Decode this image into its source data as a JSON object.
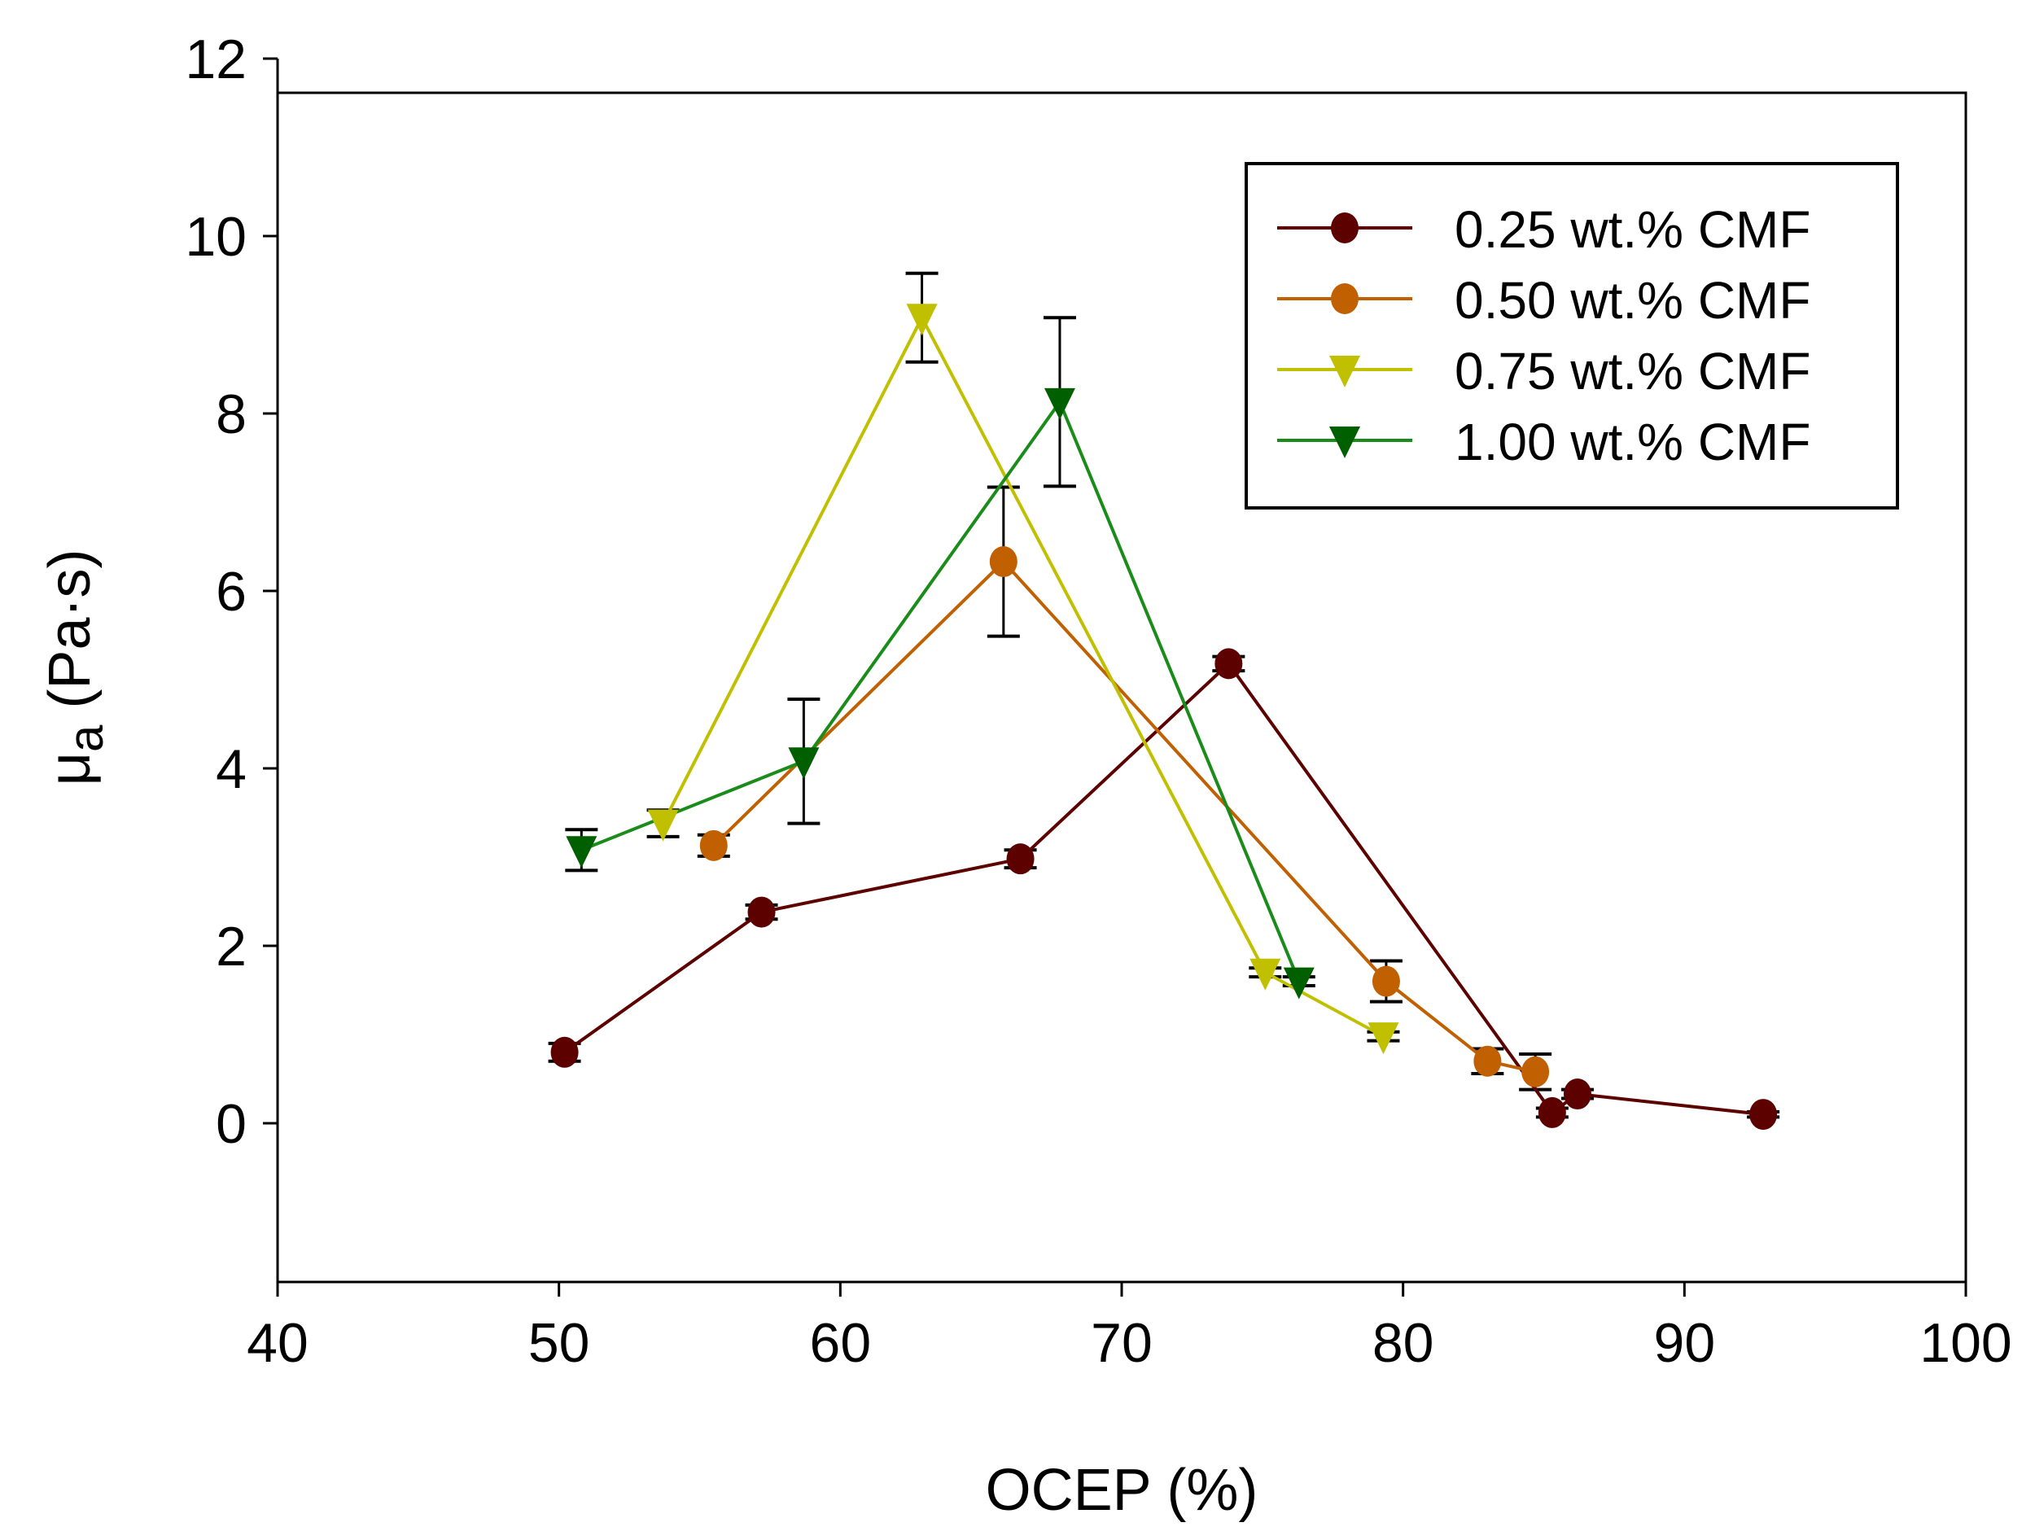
{
  "chart_data": {
    "type": "line",
    "title": "",
    "xlabel": "OCEP (%)",
    "ylabel_main": "μ",
    "ylabel_sub": "a",
    "ylabel_unit": " (Pa·s)",
    "xlim": [
      40,
      100
    ],
    "ylim": [
      -1.8,
      11.62
    ],
    "y_axis_top": 12,
    "xticks": [
      40,
      50,
      60,
      70,
      80,
      90,
      100
    ],
    "yticks": [
      0,
      2,
      4,
      6,
      8,
      10,
      12
    ],
    "grid": false,
    "legend_position": "top-right",
    "series": [
      {
        "name": "0.25 wt.% CMF",
        "marker": "circle",
        "color": "#5c0000",
        "line_color": "#5c0000",
        "x": [
          50.2,
          57.2,
          66.4,
          73.8,
          85.3,
          86.2,
          92.8
        ],
        "y": [
          0.8,
          2.38,
          2.98,
          5.18,
          0.12,
          0.33,
          0.1
        ],
        "err": [
          0.1,
          0.08,
          0.1,
          0.08,
          0.05,
          0.05,
          0.03
        ]
      },
      {
        "name": "0.50 wt.% CMF",
        "marker": "circle",
        "color": "#c06000",
        "line_color": "#c06000",
        "x": [
          55.5,
          65.8,
          79.4,
          83.0,
          84.7
        ],
        "y": [
          3.13,
          6.33,
          1.6,
          0.7,
          0.58
        ],
        "err": [
          0.12,
          0.84,
          0.23,
          0.14,
          0.2
        ]
      },
      {
        "name": "0.75 wt.% CMF",
        "marker": "triangle-down",
        "color": "#c0c000",
        "line_color": "#c0c000",
        "x": [
          53.7,
          62.9,
          75.1,
          79.3
        ],
        "y": [
          3.38,
          9.08,
          1.7,
          0.98
        ],
        "err": [
          0.15,
          0.5,
          0.05,
          0.05
        ]
      },
      {
        "name": "1.00 wt.% CMF",
        "marker": "triangle-down",
        "color": "#006000",
        "line_color": "#1a8c1a",
        "x": [
          50.8,
          58.7,
          67.8,
          76.3
        ],
        "y": [
          3.08,
          4.08,
          8.13,
          1.6
        ],
        "err": [
          0.23,
          0.7,
          0.95,
          0.05
        ]
      }
    ]
  }
}
